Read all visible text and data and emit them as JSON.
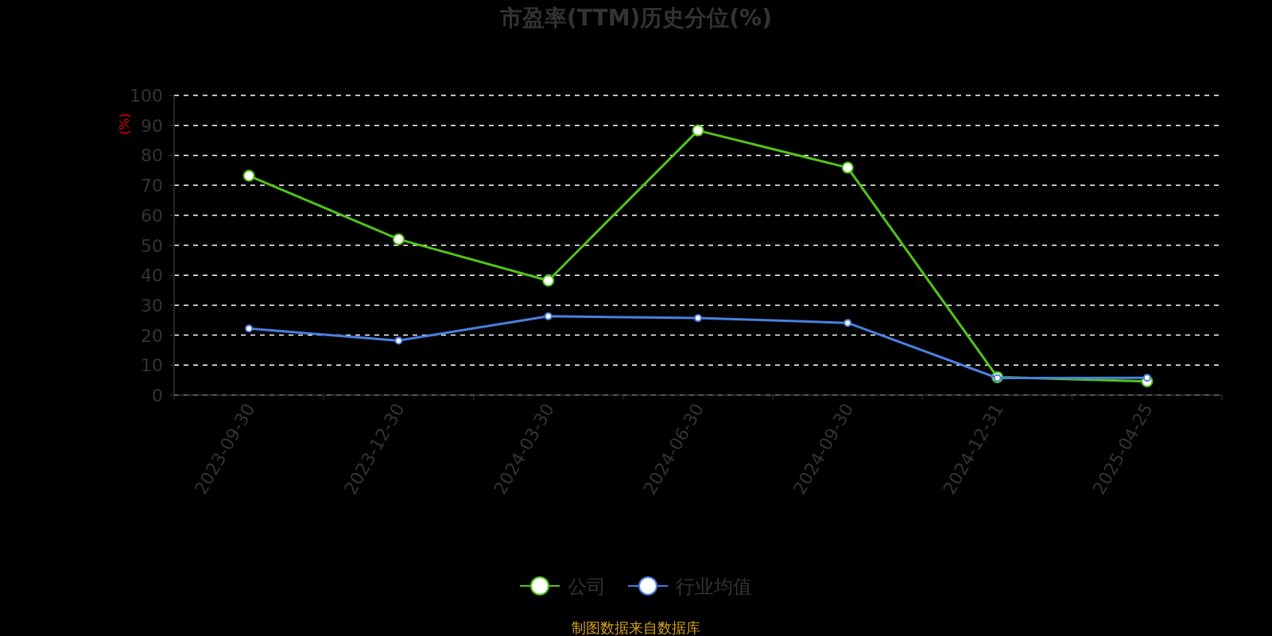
{
  "chart_data": {
    "type": "line",
    "title": "市盈率(TTM)历史分位(%)",
    "ylabel": "(%)",
    "categories": [
      "2023-09-30",
      "2023-12-30",
      "2024-03-30",
      "2024-06-30",
      "2024-09-30",
      "2024-12-31",
      "2025-04-25"
    ],
    "series": [
      {
        "name": "公司",
        "color": "#52c41a",
        "values": [
          73.2,
          52.0,
          38.2,
          88.3,
          75.9,
          6.0,
          4.6
        ]
      },
      {
        "name": "行业均值",
        "color": "#4a80e0",
        "values": [
          22.2,
          18.2,
          26.3,
          25.7,
          24.1,
          5.7,
          5.8
        ]
      }
    ],
    "ylim": [
      0,
      100
    ],
    "yticks": [
      0,
      10,
      20,
      30,
      40,
      50,
      60,
      70,
      80,
      90,
      100
    ],
    "grid": "y",
    "legend": "bottom",
    "marker": "circle",
    "line_style": "solid",
    "annotations": [
      "制图数据来自数据库"
    ]
  }
}
